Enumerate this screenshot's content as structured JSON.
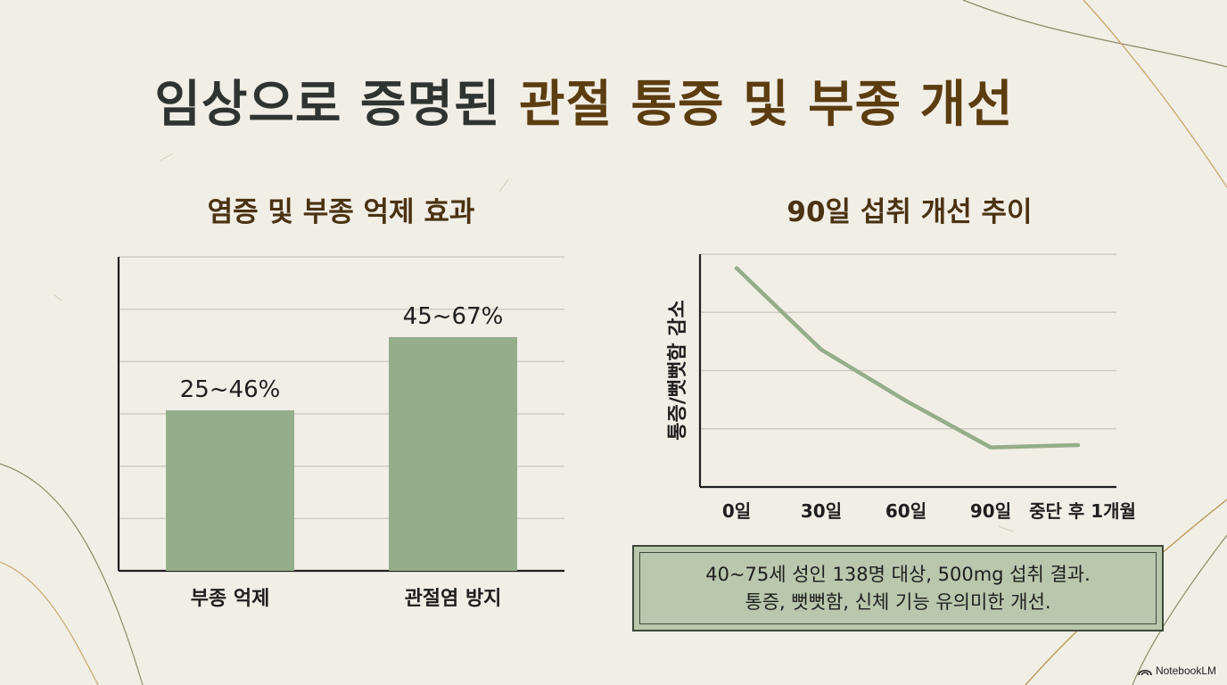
{
  "title": {
    "part1": "임상으로 증명된",
    "part2": "관절 통증 및 부종 개선"
  },
  "colors": {
    "bar": "#94ad8a",
    "line": "#94ad8a",
    "title_dark": "#2f3430",
    "title_accent": "#5c3d10",
    "note_bg": "#b9c7ad"
  },
  "chart_data": [
    {
      "type": "bar",
      "title": "염증 및 부종 억제 효과",
      "categories": [
        "부종 억제",
        "관절염 방지"
      ],
      "values": [
        46,
        67
      ],
      "ranges": [
        [
          25,
          46
        ],
        [
          45,
          67
        ]
      ],
      "data_labels": [
        "25~46%",
        "45~67%"
      ],
      "ylim": [
        0,
        90
      ],
      "grid": true
    },
    {
      "type": "line",
      "title": "90일 섭취 개선 추이",
      "ylabel": "통증/뻣뻣함 감소",
      "categories": [
        "0일",
        "30일",
        "60일",
        "90일",
        "중단 후 1개월"
      ],
      "values": [
        94,
        59,
        37,
        17,
        18
      ],
      "ylim": [
        0,
        100
      ],
      "grid": true
    }
  ],
  "note": {
    "line1": "40~75세 성인 138명 대상, 500mg 섭취 결과.",
    "line2": "통증, 뻣뻣함, 신체 기능 유의미한 개선."
  },
  "brand": {
    "icon": "notebook-icon",
    "text": "NotebookLM"
  }
}
